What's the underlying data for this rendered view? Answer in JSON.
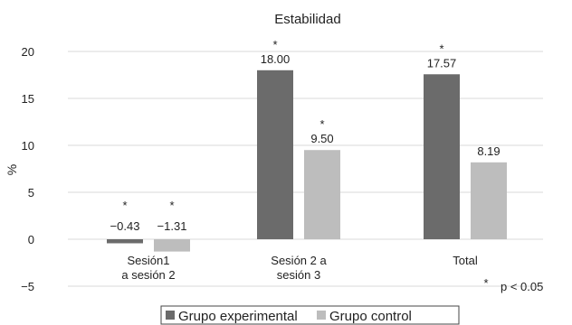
{
  "chart_data": {
    "type": "bar",
    "title": "Estabilidad",
    "ylabel": "%",
    "xlabel": "",
    "ylim": [
      -5,
      20
    ],
    "yticks": [
      20,
      15,
      10,
      5,
      0,
      -5
    ],
    "yticks_display": [
      "20",
      "15",
      "10",
      "5",
      "0",
      "−5"
    ],
    "grid": true,
    "legend_position": "bottom-center",
    "categories": [
      [
        "Sesión1",
        "a sesión 2"
      ],
      [
        "Sesión 2 a",
        "sesión 3"
      ],
      [
        "Total"
      ]
    ],
    "series": [
      {
        "name": "Grupo experimental",
        "color": "#6b6b6b",
        "values": [
          -0.43,
          18.0,
          17.57
        ],
        "labels": [
          "−0.43",
          "18.00",
          "17.57"
        ],
        "significant": [
          true,
          true,
          true
        ]
      },
      {
        "name": "Grupo control",
        "color": "#bdbdbd",
        "values": [
          -1.31,
          9.5,
          8.19
        ],
        "labels": [
          "−1.31",
          "9.50",
          "8.19"
        ],
        "significant": [
          true,
          true,
          false
        ]
      }
    ],
    "significance_symbol": "*",
    "significance_note": "p < 0.05"
  }
}
